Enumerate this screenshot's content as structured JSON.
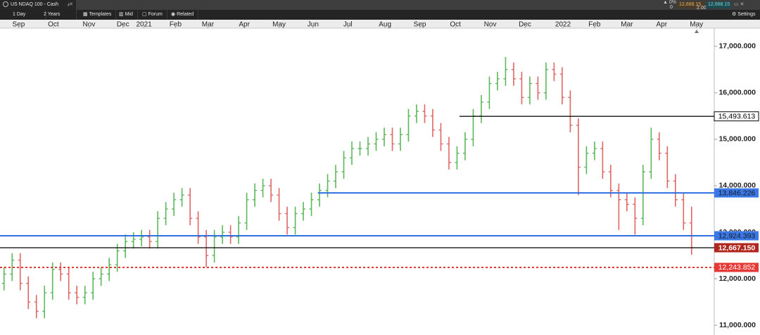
{
  "window": {
    "title": "US NDAQ 100 - Cash"
  },
  "toolbar": {
    "interval": "1 Day",
    "range": "2 Years",
    "buttons": [
      "Templates",
      "Mid",
      "Forum",
      "Related"
    ],
    "settings": "Settings"
  },
  "quote": {
    "change": "0%",
    "position": "0",
    "bid": "12,668.15",
    "spread": "2.00",
    "ask": "12,668.15"
  },
  "chart_data": {
    "type": "ohlc",
    "up_color": "#5cb85c",
    "down_color": "#e06666",
    "xlim": [
      -0.5,
      87.8
    ],
    "xticks": [
      {
        "value": 1.8,
        "label": "Sep"
      },
      {
        "value": 6.1,
        "label": "Oct"
      },
      {
        "value": 10.5,
        "label": "Nov"
      },
      {
        "value": 14.7,
        "label": "Dec"
      },
      {
        "value": 17.3,
        "label": "2021"
      },
      {
        "value": 21.2,
        "label": "Feb"
      },
      {
        "value": 25.2,
        "label": "Mar"
      },
      {
        "value": 29.7,
        "label": "Apr"
      },
      {
        "value": 34.0,
        "label": "May"
      },
      {
        "value": 38.2,
        "label": "Jun"
      },
      {
        "value": 42.5,
        "label": "Jul"
      },
      {
        "value": 47.1,
        "label": "Aug"
      },
      {
        "value": 51.4,
        "label": "Sep"
      },
      {
        "value": 55.8,
        "label": "Oct"
      },
      {
        "value": 60.1,
        "label": "Nov"
      },
      {
        "value": 64.4,
        "label": "Dec"
      },
      {
        "value": 69.1,
        "label": "2022"
      },
      {
        "value": 73.0,
        "label": "Feb"
      },
      {
        "value": 77.0,
        "label": "Mar"
      },
      {
        "value": 81.3,
        "label": "Apr"
      },
      {
        "value": 85.6,
        "label": "May"
      }
    ],
    "ylim": [
      10790,
      17390
    ],
    "yticks": [
      {
        "value": 17000,
        "label": "17,000.000"
      },
      {
        "value": 16000,
        "label": "16,000.000"
      },
      {
        "value": 15000,
        "label": "15,000.000"
      },
      {
        "value": 14000,
        "label": "14,000.000"
      },
      {
        "value": 13000,
        "label": "13,000.000"
      },
      {
        "value": 12000,
        "label": "12,000.000"
      },
      {
        "value": 11000,
        "label": "11,000.000"
      }
    ],
    "open": [
      11900,
      12100,
      12400,
      11900,
      11500,
      11300,
      11700,
      12200,
      12100,
      11700,
      11600,
      11700,
      12000,
      12100,
      12300,
      12600,
      12800,
      12850,
      12900,
      12800,
      13300,
      13500,
      13700,
      13800,
      13300,
      12900,
      12500,
      12900,
      13000,
      12900,
      13200,
      13700,
      13900,
      14000,
      13800,
      13400,
      13100,
      13400,
      13500,
      13700,
      13900,
      14100,
      14300,
      14600,
      14800,
      14800,
      14900,
      15000,
      15100,
      14900,
      15100,
      15500,
      15600,
      15500,
      15200,
      14900,
      14500,
      14700,
      15000,
      15500,
      15800,
      16200,
      16300,
      16500,
      16300,
      15900,
      16200,
      16000,
      16500,
      16400,
      15900,
      15300,
      14400,
      14700,
      14800,
      14300,
      13900,
      13700,
      13600,
      13300,
      14300,
      15000,
      14700,
      14100,
      13700,
      13200
    ],
    "high": [
      12250,
      12550,
      12550,
      12050,
      11650,
      11850,
      12350,
      12350,
      12250,
      11850,
      11850,
      12150,
      12250,
      12450,
      12750,
      12950,
      13000,
      13050,
      13050,
      13450,
      13650,
      13850,
      13950,
      13950,
      13450,
      13050,
      13050,
      13150,
      13150,
      13350,
      13850,
      14050,
      14150,
      14150,
      13950,
      13550,
      13550,
      13650,
      13850,
      14050,
      14250,
      14450,
      14750,
      14950,
      14950,
      15050,
      15150,
      15250,
      15250,
      15250,
      15650,
      15750,
      15750,
      15650,
      15350,
      15050,
      14850,
      15150,
      15650,
      15950,
      16350,
      16450,
      16770,
      16650,
      16450,
      16350,
      16350,
      16650,
      16650,
      16550,
      16050,
      15450,
      14850,
      14950,
      14950,
      14450,
      14050,
      13850,
      13750,
      14450,
      15250,
      15150,
      14850,
      14250,
      13850,
      13550
    ],
    "low": [
      11750,
      11950,
      11750,
      11350,
      11150,
      11150,
      11550,
      11950,
      11550,
      11450,
      11450,
      11550,
      11850,
      11950,
      12150,
      12450,
      12650,
      12700,
      12650,
      12650,
      13150,
      13350,
      13550,
      13150,
      12750,
      12250,
      12350,
      12750,
      12750,
      12750,
      13050,
      13550,
      13750,
      13650,
      13250,
      12950,
      12950,
      13250,
      13350,
      13550,
      13750,
      13950,
      14150,
      14450,
      14650,
      14650,
      14750,
      14850,
      14750,
      14750,
      14950,
      15350,
      15350,
      15050,
      14750,
      14350,
      14350,
      14550,
      14850,
      15350,
      15650,
      16050,
      16150,
      16150,
      15750,
      15750,
      15850,
      15850,
      16250,
      15750,
      15150,
      13800,
      14250,
      14550,
      14150,
      13750,
      13050,
      13450,
      12950,
      13150,
      14150,
      14550,
      13950,
      13550,
      13050,
      12517
    ],
    "close": [
      12100,
      12400,
      11900,
      11500,
      11300,
      11700,
      12200,
      12100,
      11700,
      11600,
      11700,
      12000,
      12100,
      12300,
      12600,
      12800,
      12850,
      12900,
      12800,
      13300,
      13500,
      13700,
      13800,
      13300,
      12900,
      12500,
      12900,
      13000,
      12900,
      13200,
      13700,
      13900,
      14000,
      13800,
      13400,
      13100,
      13400,
      13500,
      13700,
      13900,
      14100,
      14300,
      14600,
      14800,
      14800,
      14900,
      15000,
      15100,
      14900,
      15100,
      15500,
      15600,
      15500,
      15200,
      14900,
      14500,
      14700,
      15000,
      15500,
      15800,
      16200,
      16300,
      16500,
      16300,
      15900,
      16200,
      16000,
      16500,
      16400,
      15900,
      15300,
      14400,
      14700,
      14800,
      14300,
      13900,
      13700,
      13600,
      13300,
      14300,
      15000,
      14700,
      14100,
      13700,
      13200,
      12667
    ],
    "levels": [
      {
        "value": 15493.613,
        "label": "15,493.613",
        "from": 56.3,
        "color": "#000000",
        "style": "solid",
        "badge_color": "#ffffff",
        "text_color": "#000000"
      },
      {
        "value": 13846.226,
        "label": "13,846.226",
        "from": 38.8,
        "color": "#2f6fdf",
        "style": "solid",
        "badge_color": "#3b78e7",
        "text_color": "#1a1a1a"
      },
      {
        "value": 12924.393,
        "label": "12,924.393",
        "color": "#2f6fdf",
        "style": "solid",
        "badge_color": "#3b78e7",
        "text_color": "#1a1a1a"
      },
      {
        "value": 12667.15,
        "label": "12,667.150",
        "color": "#000000",
        "style": "solid",
        "badge_color": "#b0261c",
        "text_color": "#ffffff"
      },
      {
        "value": 12243.852,
        "label": "12,243.852",
        "color": "#e53935",
        "style": "dotted",
        "badge_color": "#e53935",
        "text_color": "#ffffff"
      }
    ]
  }
}
